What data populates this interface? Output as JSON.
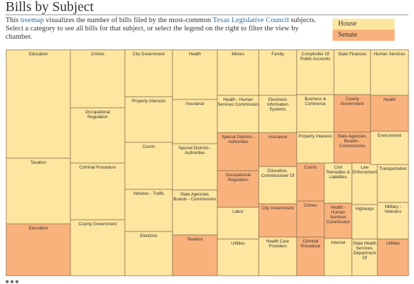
{
  "header": {
    "title": "Bills by Subject",
    "intro_before": "This ",
    "intro_link1": "treemap",
    "intro_mid": " visualizes the number of bills filed by the most-common ",
    "intro_link2": "Texas Legislative Council",
    "intro_after": " subjects. Select a category to see all bills for that subject, or select the legend on the right to filter the view by chamber."
  },
  "legend": {
    "house": "House",
    "senate": "Senate"
  },
  "colors": {
    "house": "#fde6a0",
    "senate": "#fab27c",
    "border": "#8a7450"
  },
  "chart_data": {
    "type": "treemap",
    "categories": [
      "Education",
      "Crimes",
      "City Government",
      "Health",
      "Minors",
      "Family",
      "Comptroller Of Public Accounts",
      "State Finances",
      "Human Services"
    ],
    "legend": [
      "House",
      "Senate"
    ],
    "cells": [
      {
        "label": "Education",
        "chamber": "House"
      },
      {
        "label": "Taxation",
        "chamber": "House"
      },
      {
        "label": "Education",
        "chamber": "Senate"
      },
      {
        "label": "Crimes",
        "chamber": "House"
      },
      {
        "label": "Occupational Regulation",
        "chamber": "House"
      },
      {
        "label": "Criminal Procedure",
        "chamber": "House"
      },
      {
        "label": "County Government",
        "chamber": "House"
      },
      {
        "label": "City Government",
        "chamber": "House"
      },
      {
        "label": "Property Interests",
        "chamber": "House"
      },
      {
        "label": "Courts",
        "chamber": "House"
      },
      {
        "label": "Vehicles - Traffic",
        "chamber": "House"
      },
      {
        "label": "Elections",
        "chamber": "House"
      },
      {
        "label": "Health",
        "chamber": "House"
      },
      {
        "label": "Insurance",
        "chamber": "House"
      },
      {
        "label": "Special Districts - Authorities",
        "chamber": "House"
      },
      {
        "label": "State Agencies, Boards - Commissions",
        "chamber": "House"
      },
      {
        "label": "Taxation",
        "chamber": "Senate"
      },
      {
        "label": "Minors",
        "chamber": "House"
      },
      {
        "label": "Health - Human Services Commission",
        "chamber": "House"
      },
      {
        "label": "Special Districts - Authorities",
        "chamber": "Senate"
      },
      {
        "label": "Occupational Regulation",
        "chamber": "Senate"
      },
      {
        "label": "Labor",
        "chamber": "House"
      },
      {
        "label": "Utilities",
        "chamber": "House"
      },
      {
        "label": "Family",
        "chamber": "House"
      },
      {
        "label": "Electronic Information Systems",
        "chamber": "House"
      },
      {
        "label": "Insurance",
        "chamber": "Senate"
      },
      {
        "label": "Education, Commissioner Of",
        "chamber": "House"
      },
      {
        "label": "City Government",
        "chamber": "Senate"
      },
      {
        "label": "Health Care Providers",
        "chamber": "House"
      },
      {
        "label": "Comptroller Of Public Accounts",
        "chamber": "House"
      },
      {
        "label": "Business & Commerce",
        "chamber": "House"
      },
      {
        "label": "Property Interests",
        "chamber": "House"
      },
      {
        "label": "Courts",
        "chamber": "Senate"
      },
      {
        "label": "Crimes",
        "chamber": "Senate"
      },
      {
        "label": "Criminal Procedure",
        "chamber": "Senate"
      },
      {
        "label": "Civil Remedies & Liabilities",
        "chamber": "House"
      },
      {
        "label": "Health - Human Services Commission",
        "chamber": "Senate"
      },
      {
        "label": "Internet",
        "chamber": "House"
      },
      {
        "label": "State Finances",
        "chamber": "House"
      },
      {
        "label": "County Government",
        "chamber": "Senate"
      },
      {
        "label": "State Agencies, Boards - Commissions",
        "chamber": "Senate"
      },
      {
        "label": "Law Enforcement",
        "chamber": "House"
      },
      {
        "label": "Highways",
        "chamber": "House"
      },
      {
        "label": "State Health Services, Department Of",
        "chamber": "House"
      },
      {
        "label": "Human Services",
        "chamber": "House"
      },
      {
        "label": "Health",
        "chamber": "Senate"
      },
      {
        "label": "Environment",
        "chamber": "House"
      },
      {
        "label": "Transportation",
        "chamber": "House"
      },
      {
        "label": "Military - Veterans",
        "chamber": "House"
      },
      {
        "label": "Utilities",
        "chamber": "Senate"
      }
    ]
  }
}
